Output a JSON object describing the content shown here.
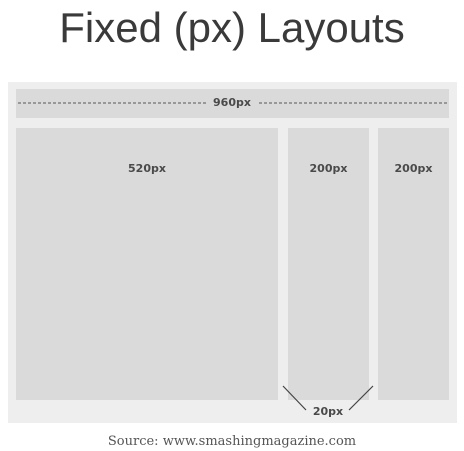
{
  "title": "Fixed (px) Layouts",
  "diagram": {
    "container_width_label": "960px",
    "main_column_label": "520px",
    "sidebar_left_label": "200px",
    "sidebar_right_label": "200px",
    "gutter_label": "20px"
  },
  "source": "Source: www.smashingmagazine.com",
  "colors": {
    "frame": "#eeeeee",
    "block": "#dadada",
    "label": "#4a4a4a",
    "title": "#3a3a3a"
  }
}
